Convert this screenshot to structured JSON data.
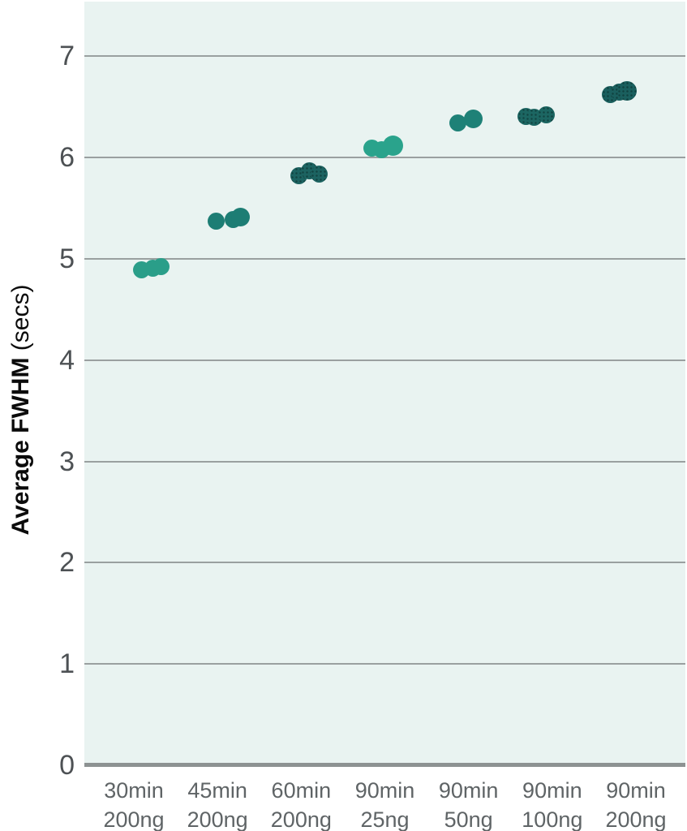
{
  "figure": {
    "y_axis_title_bold": "Average FWHM",
    "y_axis_title_unit": " (secs)"
  },
  "chart_data": {
    "type": "scatter",
    "title": "",
    "xlabel": "",
    "ylabel": "Average FWHM (secs)",
    "ylim": [
      0,
      7.54
    ],
    "yticks": [
      0,
      1,
      2,
      3,
      4,
      5,
      6,
      7
    ],
    "grid": true,
    "legend": "none",
    "background_color": "#e9f3f1",
    "gridline_color": "#9aa0a0",
    "axis_line_color": "#8d9292",
    "tick_label_color": "#4d5154",
    "x_label_color": "#5f6466",
    "categories": [
      "30min 200ng",
      "45min 200ng",
      "60min 200ng",
      "90min 25ng",
      "90min 50ng",
      "90min 100ng",
      "90min 200ng"
    ],
    "groups": [
      {
        "label_line1": "30min",
        "label_line2": "200ng",
        "color": "#2a9e89",
        "textured": false,
        "points": [
          {
            "v": 4.89,
            "dx": 9
          },
          {
            "v": 4.91,
            "dx": 23
          },
          {
            "v": 4.92,
            "dx": 33
          }
        ]
      },
      {
        "label_line1": "45min",
        "label_line2": "200ng",
        "color": "#1d7d74",
        "textured": false,
        "points": [
          {
            "v": 5.37,
            "dx": -2
          },
          {
            "v": 5.39,
            "dx": 19
          },
          {
            "v": 5.41,
            "dx": 28,
            "r": 11.5
          }
        ]
      },
      {
        "label_line1": "60min",
        "label_line2": "200ng",
        "color": "#1c6361",
        "textured": true,
        "points": [
          {
            "v": 5.82,
            "dx": -3
          },
          {
            "v": 5.87,
            "dx": 10
          },
          {
            "v": 5.84,
            "dx": 22
          }
        ]
      },
      {
        "label_line1": "90min",
        "label_line2": "25ng",
        "color": "#2aa38c",
        "textured": false,
        "points": [
          {
            "v": 6.09,
            "dx": -16
          },
          {
            "v": 6.08,
            "dx": -4
          },
          {
            "v": 6.12,
            "dx": 10,
            "r": 12.5
          }
        ]
      },
      {
        "label_line1": "90min",
        "label_line2": "50ng",
        "color": "#1e8177",
        "textured": false,
        "points": [
          {
            "v": 6.34,
            "dx": -13
          },
          {
            "v": 6.38,
            "dx": 6,
            "r": 11.5
          }
        ]
      },
      {
        "label_line1": "90min",
        "label_line2": "100ng",
        "color": "#1c6662",
        "textured": true,
        "points": [
          {
            "v": 6.41,
            "dx": -32
          },
          {
            "v": 6.4,
            "dx": -22
          },
          {
            "v": 6.42,
            "dx": -7
          }
        ]
      },
      {
        "label_line1": "90min",
        "label_line2": "200ng",
        "color": "#1a5f5e",
        "textured": true,
        "points": [
          {
            "v": 6.62,
            "dx": -32
          },
          {
            "v": 6.65,
            "dx": -21
          },
          {
            "v": 6.66,
            "dx": -11,
            "r": 12
          }
        ]
      }
    ]
  }
}
